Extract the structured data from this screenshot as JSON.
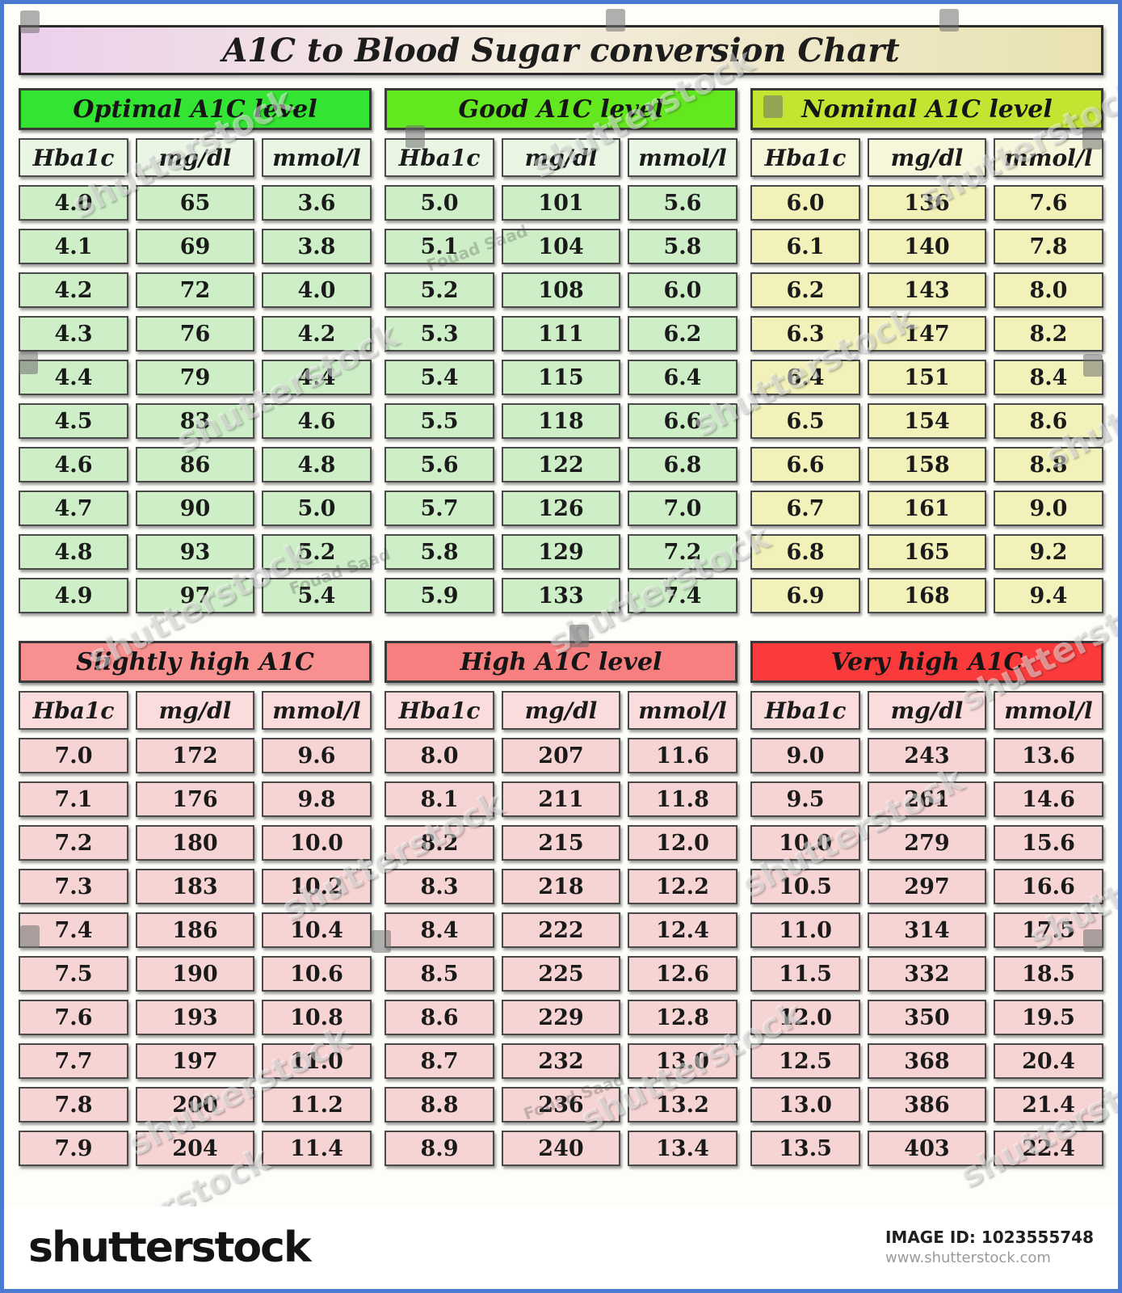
{
  "title": "A1C to Blood Sugar conversion Chart",
  "chart_data": {
    "type": "table",
    "title": "A1C to Blood Sugar conversion Chart",
    "columns": [
      "Hba1c",
      "mg/dl",
      "mmol/l"
    ],
    "groups": [
      {
        "id": "optimal",
        "label": "Optimal A1C level",
        "header_color": "#33e433",
        "header_cell_color": "#e9f6e4",
        "cell_color": "#cdeec6",
        "rows": [
          [
            "4.0",
            "65",
            "3.6"
          ],
          [
            "4.1",
            "69",
            "3.8"
          ],
          [
            "4.2",
            "72",
            "4.0"
          ],
          [
            "4.3",
            "76",
            "4.2"
          ],
          [
            "4.4",
            "79",
            "4.4"
          ],
          [
            "4.5",
            "83",
            "4.6"
          ],
          [
            "4.6",
            "86",
            "4.8"
          ],
          [
            "4.7",
            "90",
            "5.0"
          ],
          [
            "4.8",
            "93",
            "5.2"
          ],
          [
            "4.9",
            "97",
            "5.4"
          ]
        ]
      },
      {
        "id": "good",
        "label": "Good A1C level",
        "header_color": "#63e81f",
        "header_cell_color": "#e9f6e4",
        "cell_color": "#cdeec6",
        "rows": [
          [
            "5.0",
            "101",
            "5.6"
          ],
          [
            "5.1",
            "104",
            "5.8"
          ],
          [
            "5.2",
            "108",
            "6.0"
          ],
          [
            "5.3",
            "111",
            "6.2"
          ],
          [
            "5.4",
            "115",
            "6.4"
          ],
          [
            "5.5",
            "118",
            "6.6"
          ],
          [
            "5.6",
            "122",
            "6.8"
          ],
          [
            "5.7",
            "126",
            "7.0"
          ],
          [
            "5.8",
            "129",
            "7.2"
          ],
          [
            "5.9",
            "133",
            "7.4"
          ]
        ]
      },
      {
        "id": "nominal",
        "label": "Nominal A1C level",
        "header_color": "#c3e532",
        "header_cell_color": "#f6f6da",
        "cell_color": "#f1f1b9",
        "rows": [
          [
            "6.0",
            "136",
            "7.6"
          ],
          [
            "6.1",
            "140",
            "7.8"
          ],
          [
            "6.2",
            "143",
            "8.0"
          ],
          [
            "6.3",
            "147",
            "8.2"
          ],
          [
            "6.4",
            "151",
            "8.4"
          ],
          [
            "6.5",
            "154",
            "8.6"
          ],
          [
            "6.6",
            "158",
            "8.8"
          ],
          [
            "6.7",
            "161",
            "9.0"
          ],
          [
            "6.8",
            "165",
            "9.2"
          ],
          [
            "6.9",
            "168",
            "9.4"
          ]
        ]
      },
      {
        "id": "slightly-high",
        "label": "Slightly high A1C",
        "header_color": "#f89090",
        "header_cell_color": "#fadcdc",
        "cell_color": "#f7d4d4",
        "rows": [
          [
            "7.0",
            "172",
            "9.6"
          ],
          [
            "7.1",
            "176",
            "9.8"
          ],
          [
            "7.2",
            "180",
            "10.0"
          ],
          [
            "7.3",
            "183",
            "10.2"
          ],
          [
            "7.4",
            "186",
            "10.4"
          ],
          [
            "7.5",
            "190",
            "10.6"
          ],
          [
            "7.6",
            "193",
            "10.8"
          ],
          [
            "7.7",
            "197",
            "11.0"
          ],
          [
            "7.8",
            "200",
            "11.2"
          ],
          [
            "7.9",
            "204",
            "11.4"
          ]
        ]
      },
      {
        "id": "high",
        "label": "High A1C level",
        "header_color": "#f87f7f",
        "header_cell_color": "#fadcdc",
        "cell_color": "#f7d4d4",
        "rows": [
          [
            "8.0",
            "207",
            "11.6"
          ],
          [
            "8.1",
            "211",
            "11.8"
          ],
          [
            "8.2",
            "215",
            "12.0"
          ],
          [
            "8.3",
            "218",
            "12.2"
          ],
          [
            "8.4",
            "222",
            "12.4"
          ],
          [
            "8.5",
            "225",
            "12.6"
          ],
          [
            "8.6",
            "229",
            "12.8"
          ],
          [
            "8.7",
            "232",
            "13.0"
          ],
          [
            "8.8",
            "236",
            "13.2"
          ],
          [
            "8.9",
            "240",
            "13.4"
          ]
        ]
      },
      {
        "id": "very-high",
        "label": "Very high A1C",
        "header_color": "#fb3b3b",
        "header_cell_color": "#fadcdc",
        "cell_color": "#f7d4d4",
        "rows": [
          [
            "9.0",
            "243",
            "13.6"
          ],
          [
            "9.5",
            "261",
            "14.6"
          ],
          [
            "10.0",
            "279",
            "15.6"
          ],
          [
            "10.5",
            "297",
            "16.6"
          ],
          [
            "11.0",
            "314",
            "17.5"
          ],
          [
            "11.5",
            "332",
            "18.5"
          ],
          [
            "12.0",
            "350",
            "19.5"
          ],
          [
            "12.5",
            "368",
            "20.4"
          ],
          [
            "13.0",
            "386",
            "21.4"
          ],
          [
            "13.5",
            "403",
            "22.4"
          ]
        ]
      }
    ]
  },
  "watermark": {
    "text": "shutterstock",
    "author": "Fouad Saad"
  },
  "footer": {
    "logo_text": "shutterstock",
    "image_id_label": "IMAGE ID: 1023555748",
    "url": "www.shutterstock.com"
  },
  "colors": {
    "frame_border": "#4d7ad1",
    "title_gradient_left": "#ecd0ec",
    "title_gradient_right": "#e9e2b0",
    "footer_background": "#ffffff"
  }
}
